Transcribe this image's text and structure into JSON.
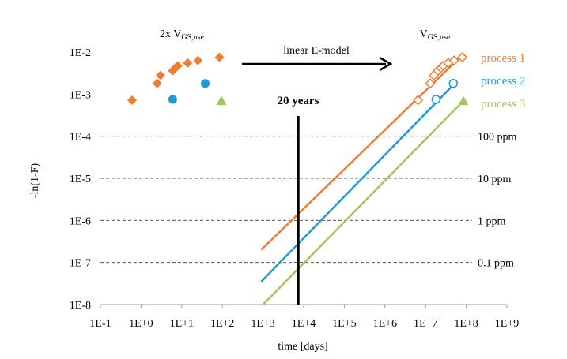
{
  "chart_data": {
    "type": "scatter",
    "x_scale": "log",
    "y_scale": "log",
    "xlabel": "time [days]",
    "ylabel": "-ln(1-F)",
    "xlim": [
      0.1,
      1000000000
    ],
    "ylim": [
      1e-08,
      0.01
    ],
    "x_ticks": [
      "1E-1",
      "1E+0",
      "1E+1",
      "1E+2",
      "1E+3",
      "1E+4",
      "1E+5",
      "1E+6",
      "1E+7",
      "1E+8",
      "1E+9"
    ],
    "y_ticks": [
      "1E-8",
      "1E-7",
      "1E-6",
      "1E-5",
      "1E-4",
      "1E-3",
      "1E-2"
    ],
    "grid": "dashed horizontal reference lines",
    "ppm_lines": [
      {
        "y": 0.0001,
        "label": "100 ppm"
      },
      {
        "y": 1e-05,
        "label": "10 ppm"
      },
      {
        "y": 1e-06,
        "label": "1 ppm"
      },
      {
        "y": 1e-07,
        "label": "0.1 ppm"
      }
    ],
    "marker_20_years": {
      "x": 7300,
      "label": "20 years"
    },
    "annotations": {
      "left_group": {
        "prefix": "2x V",
        "sub": "GS,use"
      },
      "right_group": {
        "prefix": "V",
        "sub": "GS,use"
      },
      "arrow_label": "linear E-model"
    },
    "series": [
      {
        "name": "process 1",
        "color": "#ED7D31",
        "marker": "diamond",
        "stress_points": [
          [
            0.6,
            0.00072
          ],
          [
            2.5,
            0.0018
          ],
          [
            3.0,
            0.0028
          ],
          [
            6.0,
            0.0036
          ],
          [
            7.0,
            0.0042
          ],
          [
            8.0,
            0.0047
          ],
          [
            14,
            0.0055
          ],
          [
            25,
            0.0063
          ],
          [
            85,
            0.0075
          ]
        ],
        "extrapolated_points": [
          [
            6500000,
            0.00072
          ],
          [
            13000000,
            0.0018
          ],
          [
            16000000,
            0.0028
          ],
          [
            20000000,
            0.0036
          ],
          [
            24000000,
            0.0042
          ],
          [
            27000000,
            0.0047
          ],
          [
            36000000,
            0.0055
          ],
          [
            50000000,
            0.0063
          ],
          [
            80000000,
            0.0075
          ]
        ],
        "fit_line": [
          [
            900,
            2e-07
          ],
          [
            70000000,
            0.0075
          ]
        ]
      },
      {
        "name": "process 2",
        "color": "#1E9BD7",
        "marker": "circle",
        "stress_points": [
          [
            6.0,
            0.00075
          ],
          [
            38,
            0.0018
          ]
        ],
        "extrapolated_points": [
          [
            18000000,
            0.00075
          ],
          [
            48000000,
            0.0018
          ]
        ],
        "fit_line": [
          [
            900,
            3.5e-08
          ],
          [
            55000000,
            0.0019
          ]
        ]
      },
      {
        "name": "process 3",
        "color": "#A4C75C",
        "marker": "triangle",
        "stress_points": [
          [
            95,
            0.00069
          ]
        ],
        "extrapolated_points": [
          [
            85000000,
            0.00069
          ]
        ],
        "fit_line": [
          [
            1000,
            1e-08
          ],
          [
            85000000,
            0.00069
          ]
        ]
      }
    ]
  }
}
